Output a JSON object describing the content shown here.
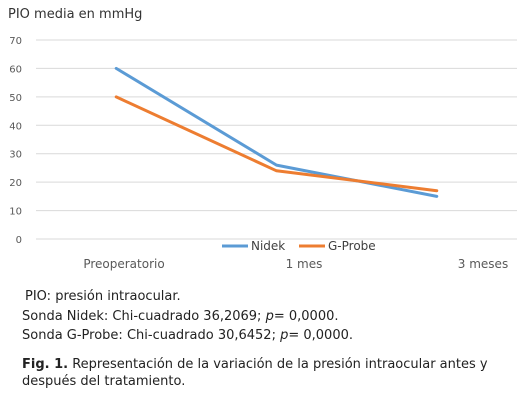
{
  "chart_data": {
    "type": "line",
    "ylabel": "PIO media en mmHg",
    "categories": [
      "Preoperatorio",
      "1 mes",
      "3 meses"
    ],
    "ylim": [
      0,
      70
    ],
    "yticks": [
      0,
      10,
      20,
      30,
      40,
      50,
      60,
      70
    ],
    "grid": true,
    "legend_position": "bottom-center",
    "series": [
      {
        "name": "Nidek",
        "values": [
          60,
          26,
          15
        ],
        "color": "#5b9bd5"
      },
      {
        "name": "G-Probe",
        "values": [
          50,
          24,
          17
        ],
        "color": "#ed7d31"
      }
    ]
  },
  "notes": {
    "abbreviation": "PIO: presión intraocular.",
    "nidek_prefix": "Sonda Nidek: Chi-cuadrado 36,2069; ",
    "nidek_p_label": "p",
    "nidek_p_value": "= 0,0000.",
    "gprobe_prefix": "Sonda G-Probe: Chi-cuadrado 30,6452; ",
    "gprobe_p_label": "p",
    "gprobe_p_value": "= 0,0000."
  },
  "caption": {
    "label": "Fig. 1.",
    "text": "Representación de la variación de la presión intraocular antes y después del tratamiento."
  }
}
